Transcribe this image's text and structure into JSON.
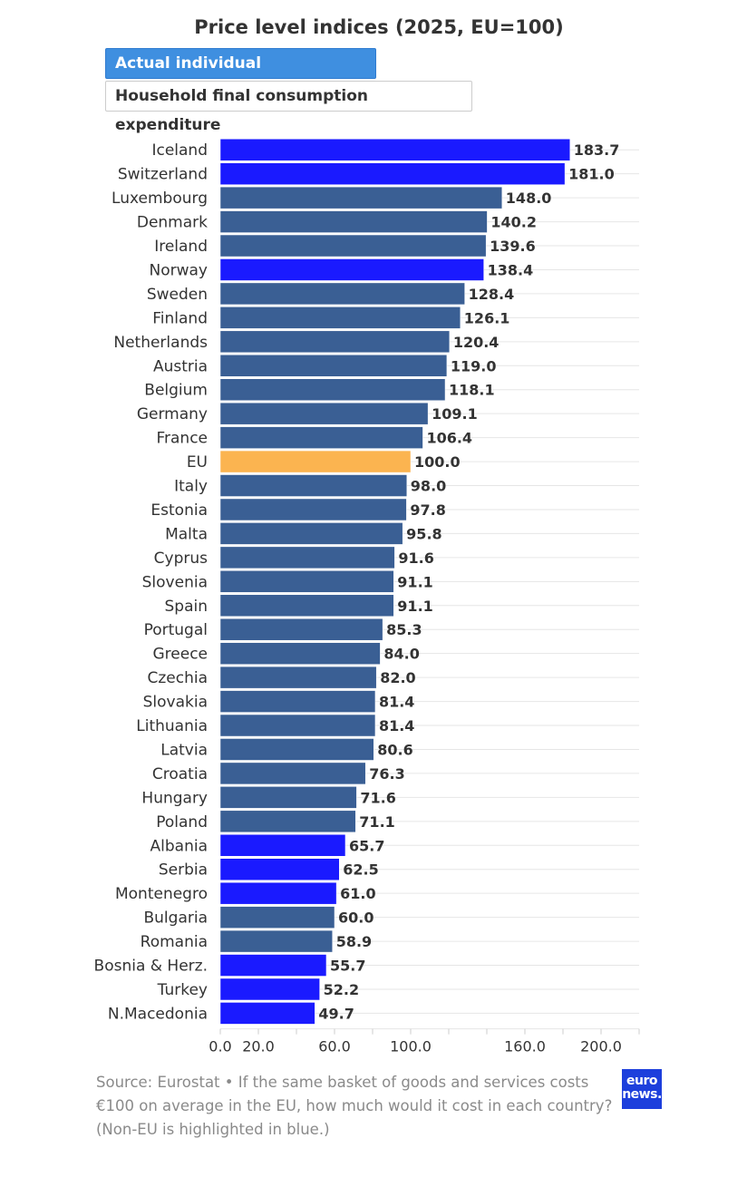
{
  "toggle": {
    "active_label": "Actual individual consumption",
    "inactive_label": "Household final consumption expenditure"
  },
  "footer": {
    "source_text": "Source: Eurostat • If the same basket of goods and services costs €100 on average in the EU, how much would it cost in each country? (Non-EU is highlighted in blue.)",
    "logo_line1": "euro",
    "logo_line2": "news."
  },
  "colors": {
    "eu_member": "#3a5f94",
    "non_eu": "#1a1aff",
    "eu_average": "#fbb450"
  },
  "chart_data": {
    "type": "bar",
    "orientation": "horizontal",
    "title": "Price level indices (2025, EU=100)",
    "categories": [
      "Iceland",
      "Switzerland",
      "Luxembourg",
      "Denmark",
      "Ireland",
      "Norway",
      "Sweden",
      "Finland",
      "Netherlands",
      "Austria",
      "Belgium",
      "Germany",
      "France",
      "EU",
      "Italy",
      "Estonia",
      "Malta",
      "Cyprus",
      "Slovenia",
      "Spain",
      "Portugal",
      "Greece",
      "Czechia",
      "Slovakia",
      "Lithuania",
      "Latvia",
      "Croatia",
      "Hungary",
      "Poland",
      "Albania",
      "Serbia",
      "Montenegro",
      "Bulgaria",
      "Romania",
      "Bosnia & Herz.",
      "Turkey",
      "N.Macedonia"
    ],
    "values": [
      183.7,
      181.0,
      148.0,
      140.2,
      139.6,
      138.4,
      128.4,
      126.1,
      120.4,
      119.0,
      118.1,
      109.1,
      106.4,
      100.0,
      98.0,
      97.8,
      95.8,
      91.6,
      91.1,
      91.1,
      85.3,
      84.0,
      82.0,
      81.4,
      81.4,
      80.6,
      76.3,
      71.6,
      71.1,
      65.7,
      62.5,
      61.0,
      60.0,
      58.9,
      55.7,
      52.2,
      49.7
    ],
    "value_labels": [
      "183.7",
      "181.0",
      "148.0",
      "140.2",
      "139.6",
      "138.4",
      "128.4",
      "126.1",
      "120.4",
      "119.0",
      "118.1",
      "109.1",
      "106.4",
      "100.0",
      "98.0",
      "97.8",
      "95.8",
      "91.6",
      "91.1",
      "91.1",
      "85.3",
      "84.0",
      "82.0",
      "81.4",
      "81.4",
      "80.6",
      "76.3",
      "71.6",
      "71.1",
      "65.7",
      "62.5",
      "61.0",
      "60.0",
      "58.9",
      "55.7",
      "52.2",
      "49.7"
    ],
    "groups": [
      "non_eu",
      "non_eu",
      "eu_member",
      "eu_member",
      "eu_member",
      "non_eu",
      "eu_member",
      "eu_member",
      "eu_member",
      "eu_member",
      "eu_member",
      "eu_member",
      "eu_member",
      "eu_average",
      "eu_member",
      "eu_member",
      "eu_member",
      "eu_member",
      "eu_member",
      "eu_member",
      "eu_member",
      "eu_member",
      "eu_member",
      "eu_member",
      "eu_member",
      "eu_member",
      "eu_member",
      "eu_member",
      "eu_member",
      "non_eu",
      "non_eu",
      "non_eu",
      "eu_member",
      "eu_member",
      "non_eu",
      "non_eu",
      "non_eu"
    ],
    "x_ticks": [
      0,
      20,
      60,
      100,
      160,
      200
    ],
    "x_tick_labels": [
      "0.0",
      "20.0",
      "60.0",
      "100.0",
      "160.0",
      "200.0"
    ],
    "xlim": [
      0,
      220
    ],
    "grid": true
  }
}
